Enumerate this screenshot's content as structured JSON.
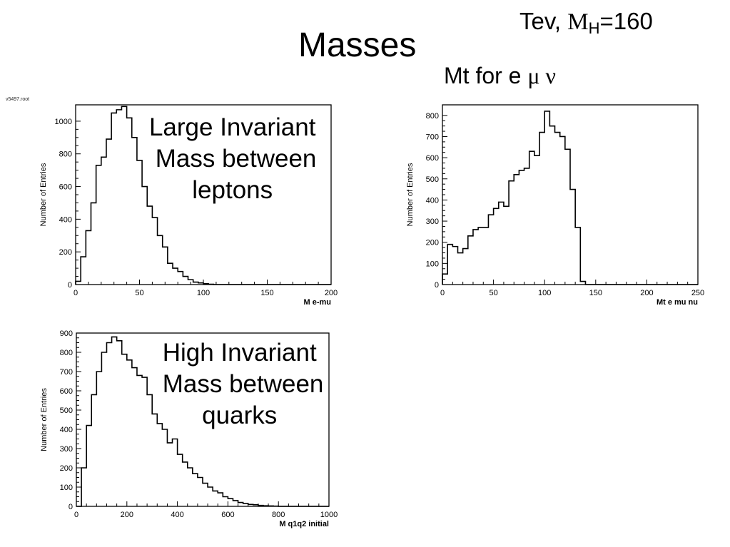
{
  "slide": {
    "title": "Masses",
    "corner_prefix": "Tev, ",
    "corner_symbol": "M",
    "corner_sub": "H",
    "corner_suffix": "=160",
    "mt_prefix": "Mt for e ",
    "mt_symbols": "μ ν",
    "file_tag": "v5497.root",
    "annotation_leptons": "Large Invariant\n Mass between\nleptons",
    "annotation_quarks": "High Invariant\n Mass between\nquarks"
  },
  "chart_data": [
    {
      "id": "emu",
      "type": "histogram",
      "xlabel": "M e-mu",
      "ylabel": "Number of Entries",
      "xlim": [
        0,
        200
      ],
      "ylim": [
        0,
        1100
      ],
      "xticks": [
        0,
        50,
        100,
        150,
        200
      ],
      "yticks": [
        0,
        200,
        400,
        600,
        800,
        1000
      ],
      "bin_width": 4,
      "values": [
        20,
        170,
        330,
        500,
        730,
        780,
        890,
        1050,
        1070,
        1090,
        1020,
        900,
        760,
        600,
        480,
        410,
        300,
        230,
        130,
        100,
        80,
        50,
        30,
        15,
        10,
        5,
        2,
        0,
        0,
        0,
        0,
        0,
        0,
        0,
        0,
        0,
        0,
        0,
        0,
        0,
        0,
        0,
        0,
        0,
        0,
        0,
        0,
        0,
        0,
        0
      ],
      "color": "#000000"
    },
    {
      "id": "emunu",
      "type": "histogram",
      "xlabel": "Mt e mu nu",
      "ylabel": "Number of Entries",
      "xlim": [
        0,
        250
      ],
      "ylim": [
        0,
        850
      ],
      "xticks": [
        0,
        50,
        100,
        150,
        200,
        250
      ],
      "yticks": [
        0,
        100,
        200,
        300,
        400,
        500,
        600,
        700,
        800
      ],
      "bin_width": 5,
      "values": [
        50,
        190,
        180,
        150,
        170,
        230,
        260,
        270,
        270,
        330,
        360,
        390,
        370,
        490,
        520,
        540,
        550,
        630,
        610,
        720,
        820,
        750,
        720,
        700,
        640,
        450,
        270,
        15,
        0,
        0,
        0,
        0,
        0,
        0,
        0,
        0,
        0,
        0,
        0,
        0,
        0,
        0,
        0,
        0,
        0,
        0,
        0,
        0,
        0,
        0
      ],
      "color": "#000000"
    },
    {
      "id": "q1q2",
      "type": "histogram",
      "xlabel": "M q1q2 initial",
      "ylabel": "Number of Entries",
      "xlim": [
        0,
        1000
      ],
      "ylim": [
        0,
        900
      ],
      "xticks": [
        0,
        200,
        400,
        600,
        800,
        1000
      ],
      "yticks": [
        0,
        100,
        200,
        300,
        400,
        500,
        600,
        700,
        800,
        900
      ],
      "bin_width": 20,
      "values": [
        0,
        200,
        420,
        580,
        700,
        800,
        850,
        880,
        860,
        790,
        760,
        720,
        680,
        670,
        580,
        480,
        430,
        400,
        330,
        350,
        270,
        230,
        200,
        170,
        150,
        120,
        100,
        80,
        70,
        50,
        40,
        30,
        20,
        15,
        10,
        8,
        5,
        3,
        2,
        1,
        0,
        0,
        0,
        0,
        0,
        0,
        0,
        0,
        0,
        0
      ],
      "color": "#000000"
    }
  ]
}
